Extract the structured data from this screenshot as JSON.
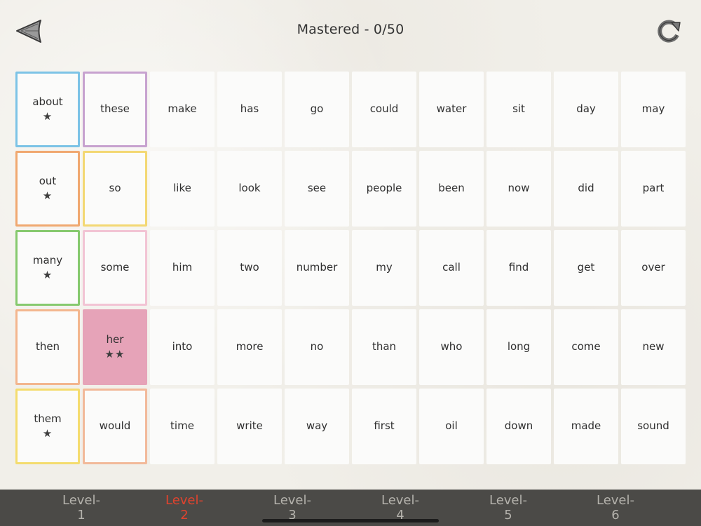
{
  "header": {
    "title": "Mastered - 0/50",
    "back_icon": "back-arrow-icon",
    "refresh_icon": "refresh-icon"
  },
  "cards": [
    {
      "word": "about",
      "stars": "★",
      "border": "#7cc3e6",
      "fill": ""
    },
    {
      "word": "these",
      "stars": "",
      "border": "#c7a2cf",
      "fill": ""
    },
    {
      "word": "make",
      "stars": "",
      "border": "",
      "fill": ""
    },
    {
      "word": "has",
      "stars": "",
      "border": "",
      "fill": ""
    },
    {
      "word": "go",
      "stars": "",
      "border": "",
      "fill": ""
    },
    {
      "word": "could",
      "stars": "",
      "border": "",
      "fill": ""
    },
    {
      "word": "water",
      "stars": "",
      "border": "",
      "fill": ""
    },
    {
      "word": "sit",
      "stars": "",
      "border": "",
      "fill": ""
    },
    {
      "word": "day",
      "stars": "",
      "border": "",
      "fill": ""
    },
    {
      "word": "may",
      "stars": "",
      "border": "",
      "fill": ""
    },
    {
      "word": "out",
      "stars": "★",
      "border": "#f0a870",
      "fill": ""
    },
    {
      "word": "so",
      "stars": "",
      "border": "#f3d873",
      "fill": ""
    },
    {
      "word": "like",
      "stars": "",
      "border": "",
      "fill": ""
    },
    {
      "word": "look",
      "stars": "",
      "border": "",
      "fill": ""
    },
    {
      "word": "see",
      "stars": "",
      "border": "",
      "fill": ""
    },
    {
      "word": "people",
      "stars": "",
      "border": "",
      "fill": ""
    },
    {
      "word": "been",
      "stars": "",
      "border": "",
      "fill": ""
    },
    {
      "word": "now",
      "stars": "",
      "border": "",
      "fill": ""
    },
    {
      "word": "did",
      "stars": "",
      "border": "",
      "fill": ""
    },
    {
      "word": "part",
      "stars": "",
      "border": "",
      "fill": ""
    },
    {
      "word": "many",
      "stars": "★",
      "border": "#86c96e",
      "fill": ""
    },
    {
      "word": "some",
      "stars": "",
      "border": "#f2c4d4",
      "fill": ""
    },
    {
      "word": "him",
      "stars": "",
      "border": "",
      "fill": ""
    },
    {
      "word": "two",
      "stars": "",
      "border": "",
      "fill": ""
    },
    {
      "word": "number",
      "stars": "",
      "border": "",
      "fill": ""
    },
    {
      "word": "my",
      "stars": "",
      "border": "",
      "fill": ""
    },
    {
      "word": "call",
      "stars": "",
      "border": "",
      "fill": ""
    },
    {
      "word": "find",
      "stars": "",
      "border": "",
      "fill": ""
    },
    {
      "word": "get",
      "stars": "",
      "border": "",
      "fill": ""
    },
    {
      "word": "over",
      "stars": "",
      "border": "",
      "fill": ""
    },
    {
      "word": "then",
      "stars": "",
      "border": "#f3b68e",
      "fill": ""
    },
    {
      "word": "her",
      "stars": "★★",
      "border": "",
      "fill": "#e6a3b8"
    },
    {
      "word": "into",
      "stars": "",
      "border": "",
      "fill": ""
    },
    {
      "word": "more",
      "stars": "",
      "border": "",
      "fill": ""
    },
    {
      "word": "no",
      "stars": "",
      "border": "",
      "fill": ""
    },
    {
      "word": "than",
      "stars": "",
      "border": "",
      "fill": ""
    },
    {
      "word": "who",
      "stars": "",
      "border": "",
      "fill": ""
    },
    {
      "word": "long",
      "stars": "",
      "border": "",
      "fill": ""
    },
    {
      "word": "come",
      "stars": "",
      "border": "",
      "fill": ""
    },
    {
      "word": "new",
      "stars": "",
      "border": "",
      "fill": ""
    },
    {
      "word": "them",
      "stars": "★",
      "border": "#f4dc6f",
      "fill": ""
    },
    {
      "word": "would",
      "stars": "",
      "border": "#f2b99a",
      "fill": ""
    },
    {
      "word": "time",
      "stars": "",
      "border": "",
      "fill": ""
    },
    {
      "word": "write",
      "stars": "",
      "border": "",
      "fill": ""
    },
    {
      "word": "way",
      "stars": "",
      "border": "",
      "fill": ""
    },
    {
      "word": "first",
      "stars": "",
      "border": "",
      "fill": ""
    },
    {
      "word": "oil",
      "stars": "",
      "border": "",
      "fill": ""
    },
    {
      "word": "down",
      "stars": "",
      "border": "",
      "fill": ""
    },
    {
      "word": "made",
      "stars": "",
      "border": "",
      "fill": ""
    },
    {
      "word": "sound",
      "stars": "",
      "border": "",
      "fill": ""
    }
  ],
  "levels": {
    "items": [
      "Level-1",
      "Level-2",
      "Level-3",
      "Level-4",
      "Level-5",
      "Level-6"
    ],
    "active_index": 1,
    "active_color": "#e0432e",
    "inactive_color": "#b4b2ac"
  }
}
